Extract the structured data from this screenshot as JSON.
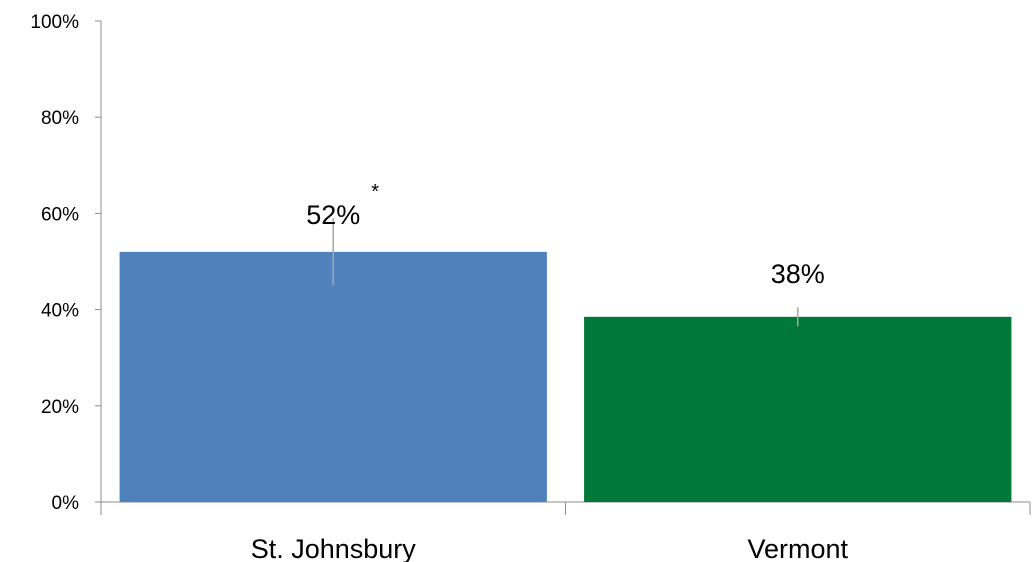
{
  "chart_data": {
    "type": "bar",
    "categories": [
      "St. Johnsbury",
      "Vermont"
    ],
    "values": [
      52,
      38.5
    ],
    "data_labels": [
      "52%",
      "38%"
    ],
    "error_bars": [
      {
        "low": 45,
        "high": 59
      },
      {
        "low": 36.5,
        "high": 40.5
      }
    ],
    "annotations": [
      "*",
      ""
    ],
    "colors": [
      "#4f81bd",
      "#00783a"
    ],
    "ylim": [
      0,
      100
    ],
    "yticks": [
      0,
      20,
      40,
      60,
      80,
      100
    ],
    "ytick_labels": [
      "0%",
      "20%",
      "40%",
      "60%",
      "80%",
      "100%"
    ],
    "title": "",
    "xlabel": "",
    "ylabel": "",
    "grid": false,
    "legend": "none"
  }
}
